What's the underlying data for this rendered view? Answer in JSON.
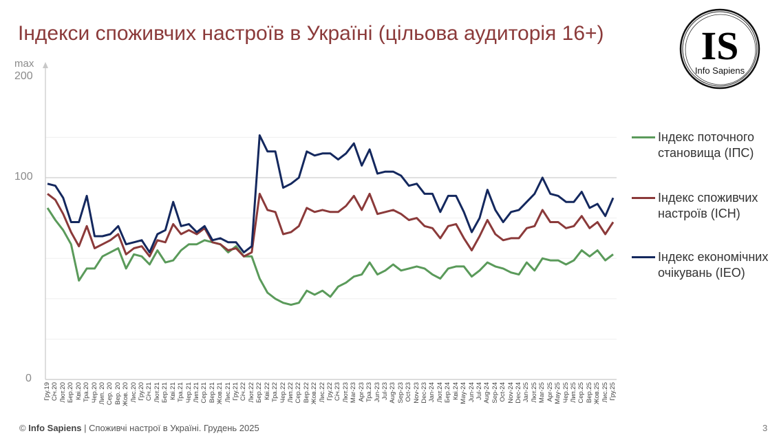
{
  "header": {
    "title": "Індекси споживчих настроїв в Україні (цільова аудиторія 16+)"
  },
  "logo": {
    "mark": "IS",
    "name": "Info Sapiens"
  },
  "footer": {
    "copyright_symbol": "©",
    "brand": "Info Sapiens",
    "text": " | Споживчі настрої в Україні. Грудень 2025",
    "page_number": "3"
  },
  "axis": {
    "y_max_label": "max",
    "y_ticks": [
      "200",
      "100",
      "0"
    ]
  },
  "legend": [
    {
      "label": "Індекс поточного становища (ІПС)",
      "color": "#5a9a5a"
    },
    {
      "label": "Індекс споживчих настроїв (ІСН)",
      "color": "#8b3a3a"
    },
    {
      "label": "Індекс економічних очікувань (ІЕО)",
      "color": "#14285e"
    }
  ],
  "chart_data": {
    "type": "line",
    "title": "Індекси споживчих настроїв в Україні (цільова аудиторія 16+)",
    "xlabel": "",
    "ylabel": "",
    "ylim": [
      0,
      200
    ],
    "y_tick_labels": [
      "0",
      "100",
      "max 200"
    ],
    "grid": true,
    "legend_position": "right",
    "categories": [
      "Гру.19",
      "Січ.20",
      "Лют.20",
      "Бер.20",
      "Кві.20",
      "Тра.20",
      "Чер.20",
      "Лип. 20",
      "Сер. 20",
      "Вер. 20",
      "Жов. 20",
      "Лис.20",
      "Гру.20",
      "Січ.21",
      "Лют.21",
      "Бер.21",
      "Кві.21",
      "Тра.21",
      "Чер.21",
      "Лип.21",
      "Сер.21",
      "Вер.21",
      "Жов.21",
      "Лис.21",
      "Гру.21",
      "Січ.22",
      "Лют.22",
      "Бер.22",
      "Кві.22",
      "Тра.22",
      "Чер.22",
      "Лип.22",
      "Сер.22",
      "Вер.22",
      "Жов.22",
      "Лис.22",
      "Гру.22",
      "Січ.23",
      "Лют.23",
      "Mar-23",
      "Apr-23",
      "Тра.23",
      "Jun-23",
      "Jul-23",
      "Aug-23",
      "Sep-23",
      "Oct-23",
      "Nov-23",
      "Dec-23",
      "Jan-24",
      "Лют.24",
      "Бер.24",
      "Кві.24",
      "May-24",
      "Jun-24",
      "Jul-24",
      "Aug-24",
      "Sep-24",
      "Oct-24",
      "Nov-24",
      "Dec-24",
      "Jan-25",
      "Лют.25",
      "Mar-25",
      "Apr-25",
      "May-25",
      "Чер.25",
      "Лип.25",
      "Сер.25",
      "Вер.25",
      "Жов.25",
      "Лис.25",
      "Гру.25"
    ],
    "series": [
      {
        "name": "Індекс поточного становища (ІПС)",
        "color": "#5a9a5a",
        "values": [
          85,
          79,
          74,
          67,
          49,
          55,
          55,
          61,
          63,
          65,
          55,
          62,
          61,
          57,
          64,
          58,
          59,
          64,
          67,
          67,
          69,
          68,
          67,
          63,
          66,
          61,
          61,
          50,
          43,
          40,
          38,
          37,
          38,
          44,
          42,
          44,
          41,
          46,
          48,
          51,
          52,
          58,
          52,
          54,
          57,
          54,
          55,
          56,
          55,
          52,
          50,
          55,
          56,
          56,
          51,
          54,
          58,
          56,
          55,
          53,
          52,
          58,
          54,
          60,
          59,
          59,
          57,
          59,
          64,
          61,
          64,
          59,
          62
        ]
      },
      {
        "name": "Індекс споживчих настроїв (ІСН)",
        "color": "#8b3a3a",
        "values": [
          92,
          89,
          82,
          73,
          66,
          76,
          65,
          67,
          69,
          72,
          62,
          65,
          66,
          61,
          69,
          68,
          77,
          72,
          74,
          72,
          75,
          68,
          67,
          64,
          65,
          61,
          63,
          92,
          84,
          83,
          72,
          73,
          76,
          85,
          83,
          84,
          83,
          83,
          86,
          91,
          84,
          92,
          82,
          83,
          84,
          82,
          79,
          80,
          76,
          75,
          70,
          76,
          77,
          70,
          64,
          71,
          79,
          72,
          69,
          70,
          70,
          75,
          76,
          84,
          78,
          78,
          75,
          76,
          81,
          75,
          78,
          72,
          78
        ]
      },
      {
        "name": "Індекс економічних очікувань (ІЕО)",
        "color": "#14285e",
        "values": [
          97,
          96,
          90,
          78,
          78,
          91,
          71,
          71,
          72,
          76,
          67,
          68,
          69,
          63,
          72,
          74,
          88,
          76,
          77,
          73,
          76,
          69,
          70,
          68,
          68,
          63,
          66,
          121,
          113,
          113,
          95,
          97,
          100,
          113,
          111,
          112,
          112,
          109,
          112,
          117,
          106,
          114,
          102,
          103,
          103,
          101,
          96,
          97,
          92,
          92,
          83,
          91,
          91,
          83,
          73,
          80,
          94,
          84,
          78,
          83,
          84,
          88,
          92,
          100,
          92,
          91,
          88,
          88,
          93,
          85,
          87,
          81,
          90
        ]
      }
    ]
  }
}
